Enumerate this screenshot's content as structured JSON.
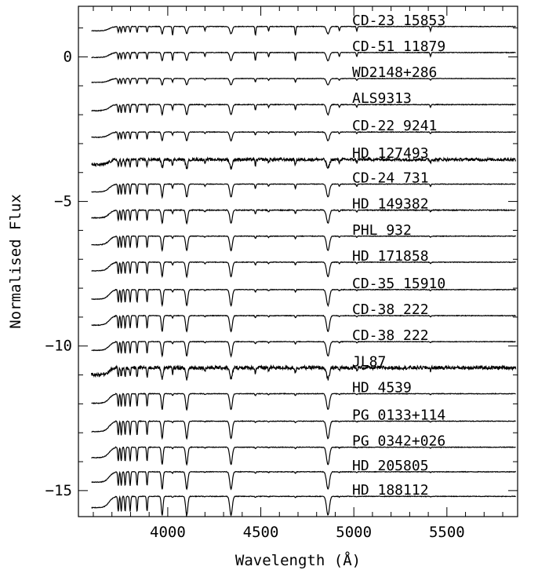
{
  "chart_data": {
    "type": "line",
    "xlabel": "Wavelength (Å)",
    "ylabel": "Normalised Flux",
    "xlim": [
      3520,
      5880
    ],
    "ylim": [
      -15.9,
      1.75
    ],
    "x_ticks": [
      4000,
      4500,
      5000,
      5500
    ],
    "y_ticks": [
      0,
      -5,
      -10,
      -15
    ],
    "grid": false,
    "line_color": "#000000",
    "series": [
      {
        "name": "CD-23 15853",
        "offset": 1.05,
        "balmer_depth": 0.25,
        "he_depth": 0.3,
        "noise": 0.01
      },
      {
        "name": "CD-51 11879",
        "offset": 0.15,
        "balmer_depth": 0.28,
        "he_depth": 0.28,
        "noise": 0.01
      },
      {
        "name": "WD2148+286",
        "offset": -0.75,
        "balmer_depth": 0.22,
        "he_depth": 0.12,
        "noise": 0.008
      },
      {
        "name": "ALS9313",
        "offset": -1.65,
        "balmer_depth": 0.35,
        "he_depth": 0.18,
        "noise": 0.012
      },
      {
        "name": "CD-22 9241",
        "offset": -2.6,
        "balmer_depth": 0.3,
        "he_depth": 0.1,
        "noise": 0.01
      },
      {
        "name": "HD 127493",
        "offset": -3.55,
        "balmer_depth": 0.3,
        "he_depth": 0.2,
        "noise": 0.05
      },
      {
        "name": "CD-24 731",
        "offset": -4.4,
        "balmer_depth": 0.45,
        "he_depth": 0.15,
        "noise": 0.01
      },
      {
        "name": "HD 149382",
        "offset": -5.3,
        "balmer_depth": 0.45,
        "he_depth": 0.12,
        "noise": 0.015
      },
      {
        "name": "PHL 932",
        "offset": -6.2,
        "balmer_depth": 0.5,
        "he_depth": 0.08,
        "noise": 0.01
      },
      {
        "name": "HD 171858",
        "offset": -7.1,
        "balmer_depth": 0.5,
        "he_depth": 0.1,
        "noise": 0.01
      },
      {
        "name": "CD-35 15910",
        "offset": -8.05,
        "balmer_depth": 0.55,
        "he_depth": 0.08,
        "noise": 0.01
      },
      {
        "name": "CD-38 222",
        "offset": -8.95,
        "balmer_depth": 0.55,
        "he_depth": 0.08,
        "noise": 0.01
      },
      {
        "name": "CD-38 222",
        "offset": -9.85,
        "balmer_depth": 0.5,
        "he_depth": 0.08,
        "noise": 0.01
      },
      {
        "name": "JL87",
        "offset": -10.75,
        "balmer_depth": 0.4,
        "he_depth": 0.2,
        "noise": 0.06
      },
      {
        "name": "HD 4539",
        "offset": -11.65,
        "balmer_depth": 0.55,
        "he_depth": 0.06,
        "noise": 0.01
      },
      {
        "name": "PG 0133+114",
        "offset": -12.6,
        "balmer_depth": 0.6,
        "he_depth": 0.05,
        "noise": 0.01
      },
      {
        "name": "PG 0342+026",
        "offset": -13.5,
        "balmer_depth": 0.6,
        "he_depth": 0.05,
        "noise": 0.01
      },
      {
        "name": "HD 205805",
        "offset": -14.35,
        "balmer_depth": 0.6,
        "he_depth": 0.05,
        "noise": 0.01
      },
      {
        "name": "HD 188112",
        "offset": -15.2,
        "balmer_depth": 0.65,
        "he_depth": 0.04,
        "noise": 0.01
      }
    ]
  }
}
